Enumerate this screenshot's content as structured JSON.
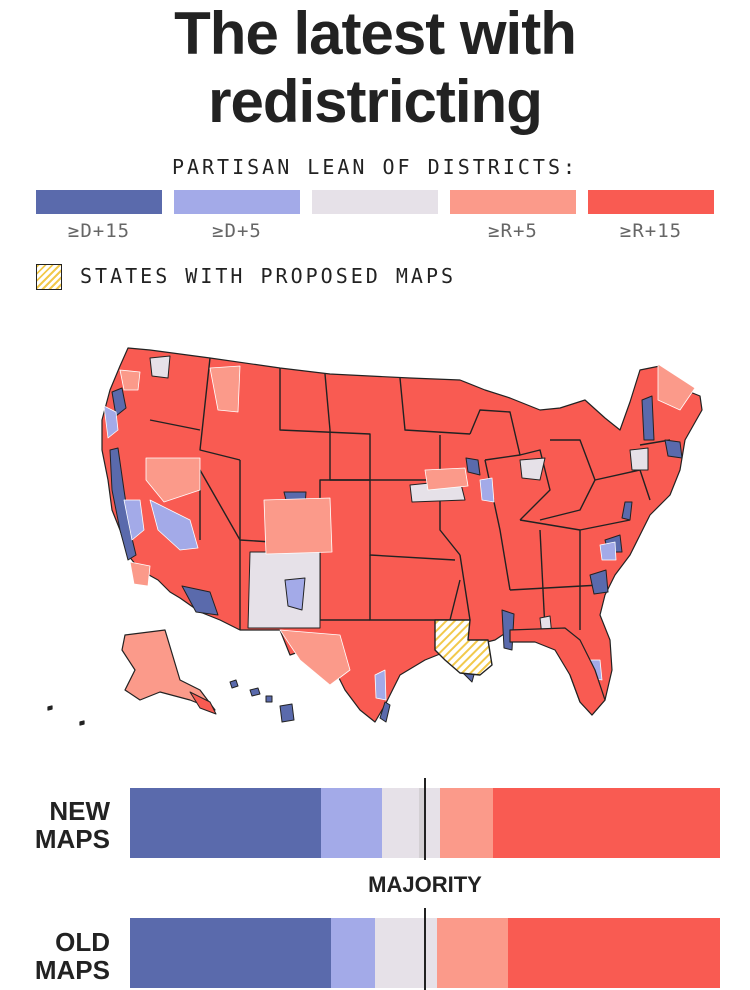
{
  "title": {
    "line1": "The latest with",
    "line2": "redistricting"
  },
  "legend": {
    "title": "PARTISAN LEAN OF DISTRICTS:",
    "items": [
      {
        "label": "≥D+15",
        "color": "#5a6aac"
      },
      {
        "label": "≥D+5",
        "color": "#a3aae8"
      },
      {
        "label": "",
        "color": "#e6e1e8"
      },
      {
        "label": "≥R+5",
        "color": "#fb9a8a"
      },
      {
        "label": "≥R+15",
        "color": "#f95b52"
      }
    ],
    "proposed_label": "STATES WITH PROPOSED MAPS",
    "proposed_color": "#f2c94c"
  },
  "bars": {
    "majority_label": "MAJORITY",
    "majority_fraction": 0.5,
    "new": {
      "label_line1": "NEW",
      "label_line2": "MAPS",
      "segments": [
        {
          "category": "≥D+15",
          "fraction": 0.324,
          "color": "#5a6aac"
        },
        {
          "category": "≥D+5",
          "fraction": 0.103,
          "color": "#a3aae8"
        },
        {
          "category": "toss-up",
          "fraction": 0.063,
          "color": "#e6e1e8"
        },
        {
          "category": "proposed",
          "fraction": 0.012,
          "color": "#d4d0d4"
        },
        {
          "category": "toss-up",
          "fraction": 0.024,
          "color": "#e6e1e8"
        },
        {
          "category": "≥R+5",
          "fraction": 0.09,
          "color": "#fb9a8a"
        },
        {
          "category": "≥R+15",
          "fraction": 0.384,
          "color": "#f95b52"
        }
      ]
    },
    "old": {
      "label_line1": "OLD",
      "label_line2": "MAPS",
      "segments": [
        {
          "category": "≥D+15",
          "fraction": 0.34,
          "color": "#5a6aac"
        },
        {
          "category": "≥D+5",
          "fraction": 0.076,
          "color": "#a3aae8"
        },
        {
          "category": "toss-up",
          "fraction": 0.105,
          "color": "#e6e1e8"
        },
        {
          "category": "≥R+5",
          "fraction": 0.12,
          "color": "#fb9a8a"
        },
        {
          "category": "≥R+15",
          "fraction": 0.359,
          "color": "#f95b52"
        }
      ]
    }
  }
}
